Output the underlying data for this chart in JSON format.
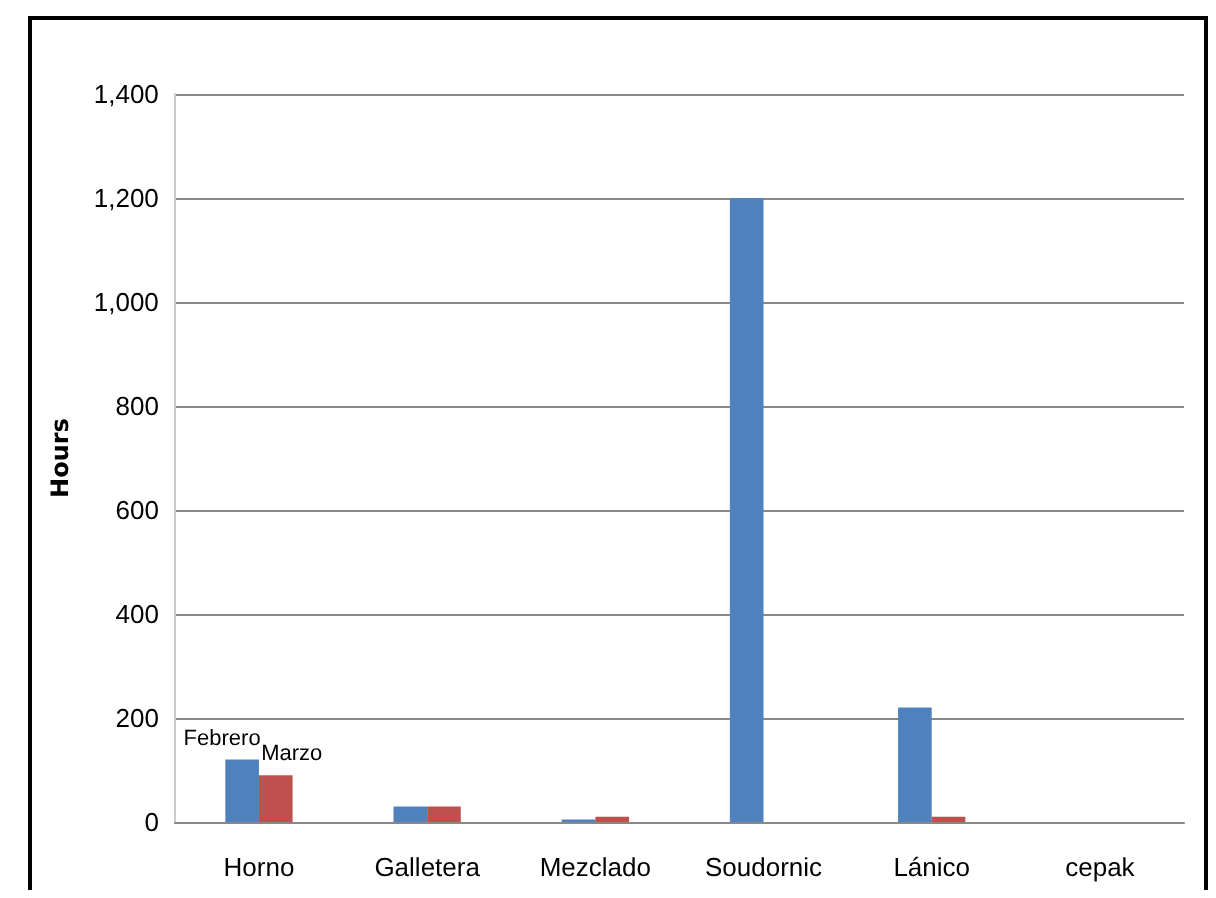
{
  "chart_data": {
    "type": "bar",
    "ylabel": "Hours",
    "categories": [
      "Horno",
      "Galletera",
      "Mezclado",
      "Soudornic",
      "Lánico",
      "cepak"
    ],
    "series": [
      {
        "name": "Febrero",
        "color": "#4f81bd",
        "values": [
          120,
          30,
          5,
          1200,
          220,
          0
        ]
      },
      {
        "name": "Marzo",
        "color": "#c0504d",
        "values": [
          90,
          30,
          10,
          0,
          10,
          0
        ]
      }
    ],
    "ylim": [
      0,
      1400
    ],
    "yticks": [
      0,
      200,
      400,
      600,
      800,
      {
        "value": 1000,
        "label": "1,000"
      },
      {
        "value": 1200,
        "label": "1,200"
      },
      {
        "value": 1400,
        "label": "1,400"
      }
    ],
    "grid": "y",
    "legend": false
  }
}
